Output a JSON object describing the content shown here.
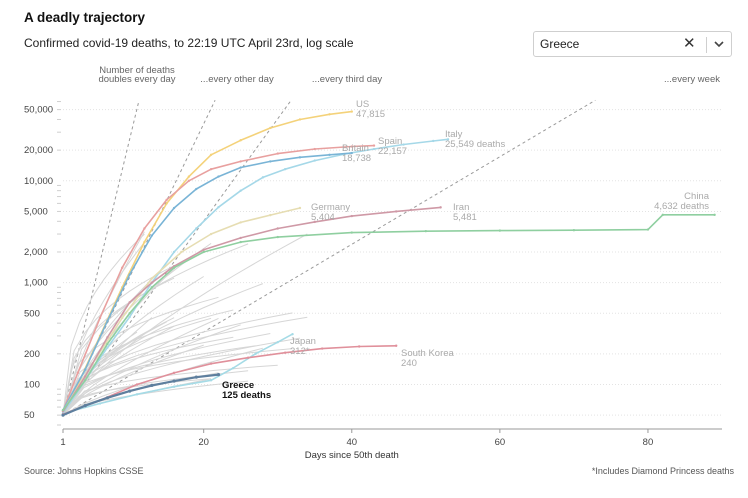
{
  "header": {
    "title": "A deadly trajectory",
    "subtitle": "Confirmed covid-19 deaths, to 22:19 UTC April 23rd, log scale"
  },
  "selector": {
    "value": "Greece",
    "clear_icon": "close-icon",
    "toggle_icon": "chevron-down-icon"
  },
  "footer": {
    "source": "Source: Johns Hopkins CSSE",
    "footnote": "*Includes Diamond Princess deaths"
  },
  "chart_data": {
    "type": "line",
    "title": "",
    "xlabel": "Days since 50th death",
    "ylabel": "",
    "xlim": [
      1,
      90
    ],
    "ylim": [
      40,
      65000
    ],
    "yscale": "log",
    "x_ticks": [
      1,
      20,
      40,
      60,
      80
    ],
    "y_ticks": [
      {
        "value": 50,
        "label": "50"
      },
      {
        "value": 100,
        "label": "100"
      },
      {
        "value": 200,
        "label": "200"
      },
      {
        "value": 500,
        "label": "500"
      },
      {
        "value": 1000,
        "label": "1,000"
      },
      {
        "value": 2000,
        "label": "2,000"
      },
      {
        "value": 5000,
        "label": "5,000"
      },
      {
        "value": 10000,
        "label": "10,000"
      },
      {
        "value": 20000,
        "label": "20,000"
      },
      {
        "value": 50000,
        "label": "50,000"
      }
    ],
    "reference_lines": [
      {
        "label_lines": [
          "Number of deaths",
          "doubles every day"
        ],
        "doubling_days": 1
      },
      {
        "label_lines": [
          "...every other day"
        ],
        "doubling_days": 2
      },
      {
        "label_lines": [
          "...every third day"
        ],
        "doubling_days": 3
      },
      {
        "label_lines": [
          "...every week"
        ],
        "doubling_days": 7
      }
    ],
    "series": [
      {
        "name": "US",
        "value_label": "47,815",
        "color": "#f4d27a",
        "points": [
          [
            1,
            50
          ],
          [
            3,
            100
          ],
          [
            6,
            300
          ],
          [
            9,
            900
          ],
          [
            12,
            2500
          ],
          [
            15,
            6000
          ],
          [
            18,
            11000
          ],
          [
            21,
            18000
          ],
          [
            25,
            25000
          ],
          [
            29,
            33000
          ],
          [
            33,
            40000
          ],
          [
            37,
            45000
          ],
          [
            40,
            47815
          ]
        ]
      },
      {
        "name": "Spain",
        "value_label": "22,157",
        "color": "#e8a09f",
        "points": [
          [
            1,
            55
          ],
          [
            3,
            130
          ],
          [
            6,
            450
          ],
          [
            9,
            1400
          ],
          [
            12,
            3400
          ],
          [
            15,
            6500
          ],
          [
            18,
            10000
          ],
          [
            21,
            13000
          ],
          [
            25,
            15500
          ],
          [
            30,
            18500
          ],
          [
            35,
            20500
          ],
          [
            40,
            21700
          ],
          [
            43,
            22157
          ]
        ]
      },
      {
        "name": "Italy",
        "value_label": "25,549 deaths",
        "color": "#a5d8e8",
        "points": [
          [
            1,
            52
          ],
          [
            4,
            110
          ],
          [
            7,
            230
          ],
          [
            10,
            460
          ],
          [
            13,
            1000
          ],
          [
            16,
            2000
          ],
          [
            19,
            3400
          ],
          [
            22,
            5500
          ],
          [
            25,
            8000
          ],
          [
            28,
            10800
          ],
          [
            31,
            13000
          ],
          [
            35,
            15800
          ],
          [
            39,
            18300
          ],
          [
            43,
            20500
          ],
          [
            47,
            22700
          ],
          [
            51,
            24600
          ],
          [
            53,
            25549
          ]
        ]
      },
      {
        "name": "Britain",
        "value_label": "18,738",
        "color": "#79b4d6",
        "points": [
          [
            1,
            56
          ],
          [
            4,
            140
          ],
          [
            7,
            420
          ],
          [
            10,
            1200
          ],
          [
            13,
            2900
          ],
          [
            16,
            5400
          ],
          [
            19,
            8300
          ],
          [
            22,
            11000
          ],
          [
            25,
            13500
          ],
          [
            29,
            15500
          ],
          [
            33,
            17000
          ],
          [
            37,
            18000
          ],
          [
            40,
            18738
          ]
        ]
      },
      {
        "name": "Germany",
        "value_label": "5,404",
        "color": "#e6ddb2",
        "points": [
          [
            1,
            55
          ],
          [
            5,
            160
          ],
          [
            9,
            450
          ],
          [
            13,
            1100
          ],
          [
            17,
            2000
          ],
          [
            21,
            3000
          ],
          [
            25,
            3900
          ],
          [
            29,
            4600
          ],
          [
            33,
            5404
          ]
        ]
      },
      {
        "name": "Iran",
        "value_label": "5,481",
        "color": "#cf99a6",
        "points": [
          [
            1,
            54
          ],
          [
            4,
            120
          ],
          [
            7,
            290
          ],
          [
            10,
            640
          ],
          [
            13,
            1000
          ],
          [
            16,
            1450
          ],
          [
            20,
            2100
          ],
          [
            25,
            2750
          ],
          [
            30,
            3400
          ],
          [
            35,
            3950
          ],
          [
            40,
            4500
          ],
          [
            46,
            5000
          ],
          [
            52,
            5481
          ]
        ]
      },
      {
        "name": "China",
        "value_label": "4,632 deaths",
        "color": "#8fcfa0",
        "points": [
          [
            1,
            56
          ],
          [
            4,
            110
          ],
          [
            7,
            250
          ],
          [
            10,
            500
          ],
          [
            13,
            900
          ],
          [
            16,
            1400
          ],
          [
            20,
            2000
          ],
          [
            25,
            2500
          ],
          [
            30,
            2800
          ],
          [
            40,
            3100
          ],
          [
            50,
            3200
          ],
          [
            60,
            3240
          ],
          [
            70,
            3270
          ],
          [
            80,
            3320
          ],
          [
            82,
            4632
          ],
          [
            89,
            4632
          ]
        ]
      },
      {
        "name": "Japan",
        "value_label": "312*",
        "color": "#a5dbe6",
        "points": [
          [
            1,
            52
          ],
          [
            6,
            65
          ],
          [
            11,
            80
          ],
          [
            16,
            95
          ],
          [
            21,
            110
          ],
          [
            24,
            145
          ],
          [
            27,
            200
          ],
          [
            30,
            260
          ],
          [
            32,
            312
          ]
        ]
      },
      {
        "name": "South Korea",
        "value_label": "240",
        "color": "#e0909b",
        "points": [
          [
            1,
            51
          ],
          [
            6,
            70
          ],
          [
            11,
            100
          ],
          [
            16,
            130
          ],
          [
            21,
            160
          ],
          [
            26,
            183
          ],
          [
            31,
            205
          ],
          [
            36,
            225
          ],
          [
            41,
            236
          ],
          [
            46,
            240
          ]
        ]
      },
      {
        "name": "Greece",
        "value_label": "125 deaths",
        "color": "#5e7f9e",
        "highlight": true,
        "points": [
          [
            1,
            50
          ],
          [
            4,
            62
          ],
          [
            7,
            74
          ],
          [
            10,
            86
          ],
          [
            13,
            98
          ],
          [
            16,
            108
          ],
          [
            19,
            118
          ],
          [
            22,
            125
          ]
        ]
      }
    ]
  }
}
